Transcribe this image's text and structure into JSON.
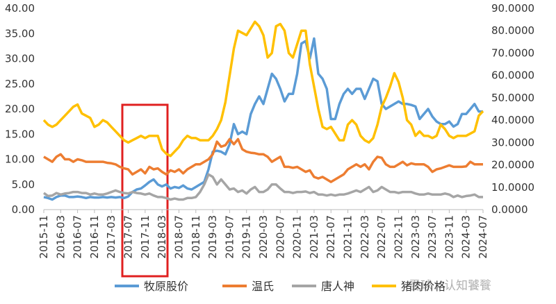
{
  "chart_data": {
    "type": "line",
    "categories": [
      "2015-11",
      null,
      null,
      null,
      "2016-03",
      null,
      null,
      null,
      "2016-07",
      null,
      null,
      null,
      "2016-11",
      null,
      null,
      null,
      "2017-03",
      null,
      null,
      null,
      "2017-07",
      null,
      null,
      null,
      "2017-11",
      null,
      null,
      null,
      "2018-03",
      null,
      null,
      null,
      "2018-07",
      null,
      null,
      null,
      "2018-11",
      null,
      null,
      null,
      "2019-03",
      null,
      null,
      null,
      "2019-07",
      null,
      null,
      null,
      "2019-11",
      null,
      null,
      null,
      "2020-03",
      null,
      null,
      null,
      "2020-07",
      null,
      null,
      null,
      "2020-11",
      null,
      null,
      null,
      "2021-03",
      null,
      null,
      null,
      "2021-07",
      null,
      null,
      null,
      "2021-11",
      null,
      null,
      null,
      "2022-03",
      null,
      null,
      null,
      "2022-07",
      null,
      null,
      null,
      "2022-11",
      null,
      null,
      null,
      "2023-03",
      null,
      null,
      null,
      "2023-07",
      null,
      null,
      null,
      "2023-11",
      null,
      null,
      null,
      "2024-03",
      null,
      null,
      null,
      "2024-07"
    ],
    "series": [
      {
        "name": "牧原股价",
        "color": "#5b9bd5",
        "values": [
          2.5,
          2.3,
          2.0,
          2.5,
          2.8,
          2.8,
          2.5,
          2.5,
          2.6,
          2.5,
          2.3,
          2.5,
          2.4,
          2.4,
          2.5,
          2.4,
          2.5,
          2.4,
          2.5,
          2.3,
          2.6,
          3.5,
          4.0,
          4.2,
          4.8,
          5.5,
          6.0,
          5.0,
          4.6,
          5.0,
          4.2,
          4.5,
          4.3,
          4.8,
          4.2,
          4.0,
          4.5,
          5.0,
          5.5,
          8.0,
          11.5,
          11.7,
          11.5,
          11.0,
          13.0,
          17.0,
          15.0,
          15.5,
          15.0,
          19.0,
          21.0,
          22.5,
          21.0,
          24.0,
          27.0,
          26.0,
          24.0,
          21.5,
          23.0,
          23.0,
          27.0,
          33.0,
          33.5,
          30.0,
          34.0,
          27.0,
          26.0,
          24.0,
          18.0,
          18.0,
          21.0,
          23.0,
          24.0,
          23.0,
          24.0,
          24.0,
          22.0,
          24.0,
          26.0,
          25.5,
          21.0,
          20.0,
          20.5,
          21.0,
          21.5,
          21.0,
          21.0,
          20.8,
          20.5,
          18.0,
          19.0,
          20.0,
          18.5,
          17.5,
          17.0,
          17.0,
          17.5,
          16.5,
          17.0,
          19.0,
          19.0,
          20.0,
          21.0,
          19.5,
          19.5
        ]
      },
      {
        "name": "温氏",
        "color": "#ed7d31",
        "values": [
          10.5,
          10.0,
          9.5,
          10.5,
          11.0,
          10.0,
          10.0,
          9.5,
          10.0,
          9.8,
          9.5,
          9.5,
          9.5,
          9.5,
          9.5,
          9.3,
          9.2,
          9.0,
          8.5,
          8.2,
          8.0,
          7.0,
          7.5,
          8.0,
          7.2,
          8.5,
          8.0,
          8.2,
          7.5,
          7.0,
          7.8,
          7.5,
          8.0,
          7.2,
          8.0,
          8.5,
          9.0,
          9.0,
          9.5,
          10.0,
          11.0,
          13.5,
          12.5,
          12.8,
          14.0,
          13.0,
          14.0,
          12.0,
          11.5,
          11.3,
          11.2,
          11.0,
          11.0,
          10.5,
          9.5,
          10.0,
          10.5,
          8.5,
          8.5,
          8.3,
          8.5,
          8.0,
          7.5,
          7.8,
          6.5,
          6.2,
          6.5,
          6.0,
          5.5,
          6.0,
          6.5,
          7.0,
          8.0,
          8.5,
          9.0,
          8.5,
          9.0,
          8.0,
          9.5,
          10.5,
          10.3,
          9.0,
          8.5,
          8.5,
          9.0,
          9.5,
          8.8,
          9.2,
          9.0,
          9.0,
          9.0,
          8.5,
          7.5,
          8.0,
          8.2,
          8.5,
          8.8,
          8.5,
          8.5,
          8.5,
          8.6,
          9.5,
          9.0,
          9.0,
          9.0
        ]
      },
      {
        "name": "唐人神",
        "color": "#a5a5a5",
        "values": [
          3.3,
          2.7,
          2.8,
          3.3,
          3.0,
          3.2,
          3.3,
          3.5,
          3.5,
          3.3,
          3.3,
          3.0,
          3.2,
          3.0,
          3.0,
          3.2,
          3.5,
          3.8,
          3.5,
          3.3,
          3.2,
          3.5,
          3.3,
          3.2,
          3.0,
          3.2,
          2.8,
          2.5,
          2.5,
          2.3,
          2.0,
          2.2,
          2.0,
          2.0,
          2.3,
          2.3,
          2.5,
          3.5,
          5.0,
          7.0,
          6.5,
          5.0,
          6.0,
          5.0,
          4.0,
          4.2,
          3.5,
          3.8,
          3.2,
          4.0,
          4.5,
          3.5,
          3.5,
          4.0,
          5.0,
          5.0,
          4.2,
          3.5,
          3.5,
          3.3,
          3.5,
          3.5,
          3.6,
          3.3,
          3.5,
          3.0,
          3.0,
          2.8,
          3.0,
          2.8,
          3.0,
          3.0,
          3.2,
          3.5,
          3.8,
          3.5,
          4.0,
          4.5,
          3.5,
          3.8,
          4.5,
          4.0,
          3.5,
          3.5,
          3.3,
          3.5,
          3.5,
          3.5,
          3.2,
          3.0,
          3.0,
          3.2,
          3.0,
          3.0,
          3.0,
          3.2,
          3.0,
          2.5,
          2.8,
          2.5,
          2.7,
          2.8,
          3.0,
          2.5,
          2.5
        ]
      },
      {
        "name": "猪肉价格",
        "color": "#ffc000",
        "axis": "y2",
        "values": [
          40,
          38,
          37,
          38,
          40,
          42,
          44,
          46,
          47,
          43,
          42,
          41,
          37,
          38,
          40,
          39,
          37,
          35,
          33,
          31,
          30,
          31,
          32,
          33,
          32,
          33,
          33,
          33,
          27,
          25,
          24,
          26,
          28,
          31,
          33,
          32,
          32,
          31,
          31,
          31,
          33,
          36,
          40,
          48,
          60,
          72,
          80,
          79,
          78,
          81,
          84,
          82,
          78,
          68,
          70,
          82,
          83,
          80,
          70,
          68,
          74,
          80,
          80,
          65,
          55,
          45,
          37,
          36,
          37,
          34,
          31,
          31,
          38,
          40,
          38,
          33,
          31,
          30,
          32,
          38,
          46,
          50,
          55,
          61,
          57,
          50,
          40,
          38,
          33,
          35,
          33,
          33,
          32,
          33,
          38,
          36,
          33,
          32,
          33,
          33,
          33,
          34,
          35,
          42,
          44
        ]
      }
    ],
    "ylim": [
      0,
      40
    ],
    "yticks": [
      {
        "value": 0,
        "label": "0.00"
      },
      {
        "value": 5,
        "label": "5.00"
      },
      {
        "value": 10,
        "label": "10.00"
      },
      {
        "value": 15,
        "label": "15.00"
      },
      {
        "value": 20,
        "label": "20.00"
      },
      {
        "value": 25,
        "label": "25.00"
      },
      {
        "value": 30,
        "label": "30.00"
      },
      {
        "value": 35,
        "label": "35.00"
      },
      {
        "value": 40,
        "label": "40.00"
      }
    ],
    "y2lim": [
      0,
      90
    ],
    "y2ticks": [
      {
        "value": 0,
        "label": "0.0000"
      },
      {
        "value": 10,
        "label": "10.0000"
      },
      {
        "value": 20,
        "label": "20.0000"
      },
      {
        "value": 30,
        "label": "30.0000"
      },
      {
        "value": 40,
        "label": "40.0000"
      },
      {
        "value": 50,
        "label": "50.0000"
      },
      {
        "value": 60,
        "label": "60.0000"
      },
      {
        "value": 70,
        "label": "70.0000"
      },
      {
        "value": 80,
        "label": "80.0000"
      },
      {
        "value": 90,
        "label": "90.0000"
      }
    ],
    "legend": "bottom",
    "watermark": "雪球：认知饕餮"
  }
}
